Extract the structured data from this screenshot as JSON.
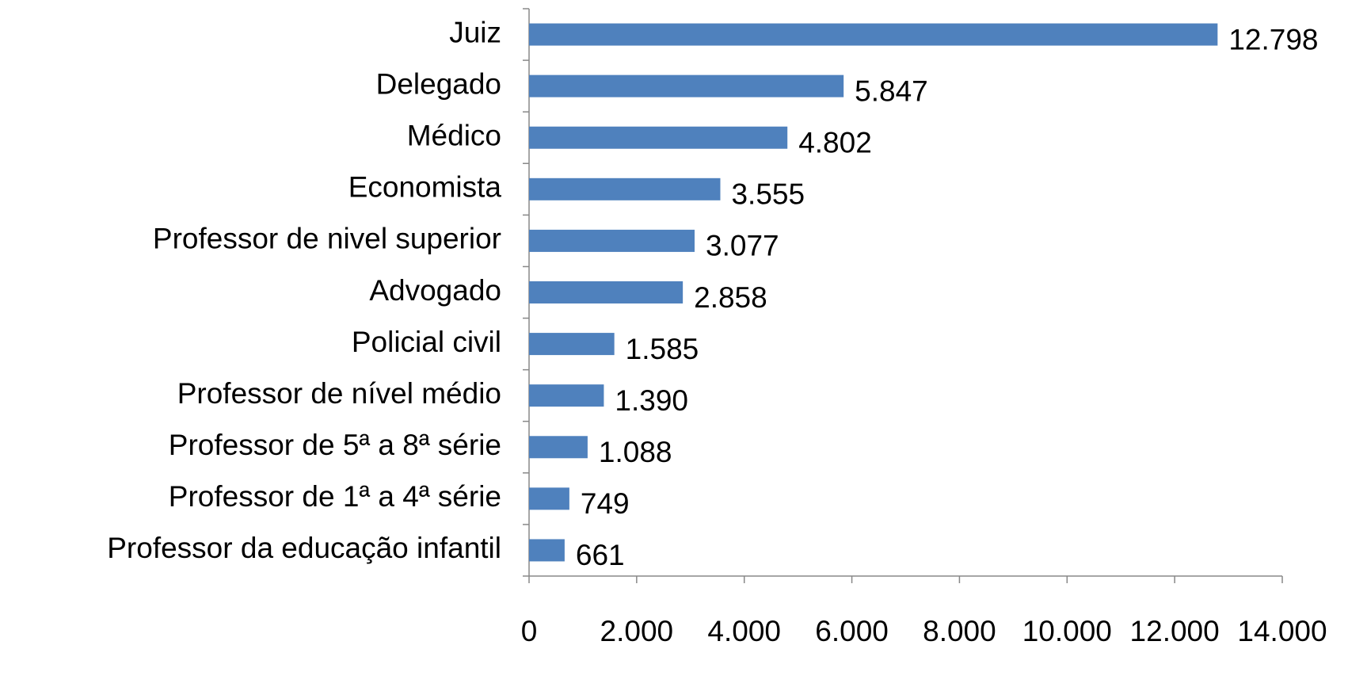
{
  "chart_data": {
    "type": "bar",
    "orientation": "horizontal",
    "categories": [
      "Juiz",
      "Delegado",
      "Médico",
      "Economista",
      "Professor de nivel superior",
      "Advogado",
      "Policial civil",
      "Professor de nível médio",
      "Professor de 5ª a 8ª série",
      "Professor de 1ª a 4ª série",
      "Professor da educação infantil"
    ],
    "values": [
      12798,
      5847,
      4802,
      3555,
      3077,
      2858,
      1585,
      1390,
      1088,
      749,
      661
    ],
    "value_labels": [
      "12.798",
      "5.847",
      "4.802",
      "3.555",
      "3.077",
      "2.858",
      "1.585",
      "1.390",
      "1.088",
      "749",
      "661"
    ],
    "color": "#4f81bd",
    "xlim": [
      0,
      14000
    ],
    "xticks": [
      0,
      {
        "value": 2000,
        "label": "2.000"
      },
      {
        "value": 4000,
        "label": "4.000"
      },
      {
        "value": 6000,
        "label": "6.000"
      },
      {
        "value": 8000,
        "label": "8.000"
      },
      {
        "value": 10000,
        "label": "10.000"
      },
      {
        "value": 12000,
        "label": "12.000"
      },
      {
        "value": 14000,
        "label": "14.000"
      }
    ],
    "grid": false
  }
}
